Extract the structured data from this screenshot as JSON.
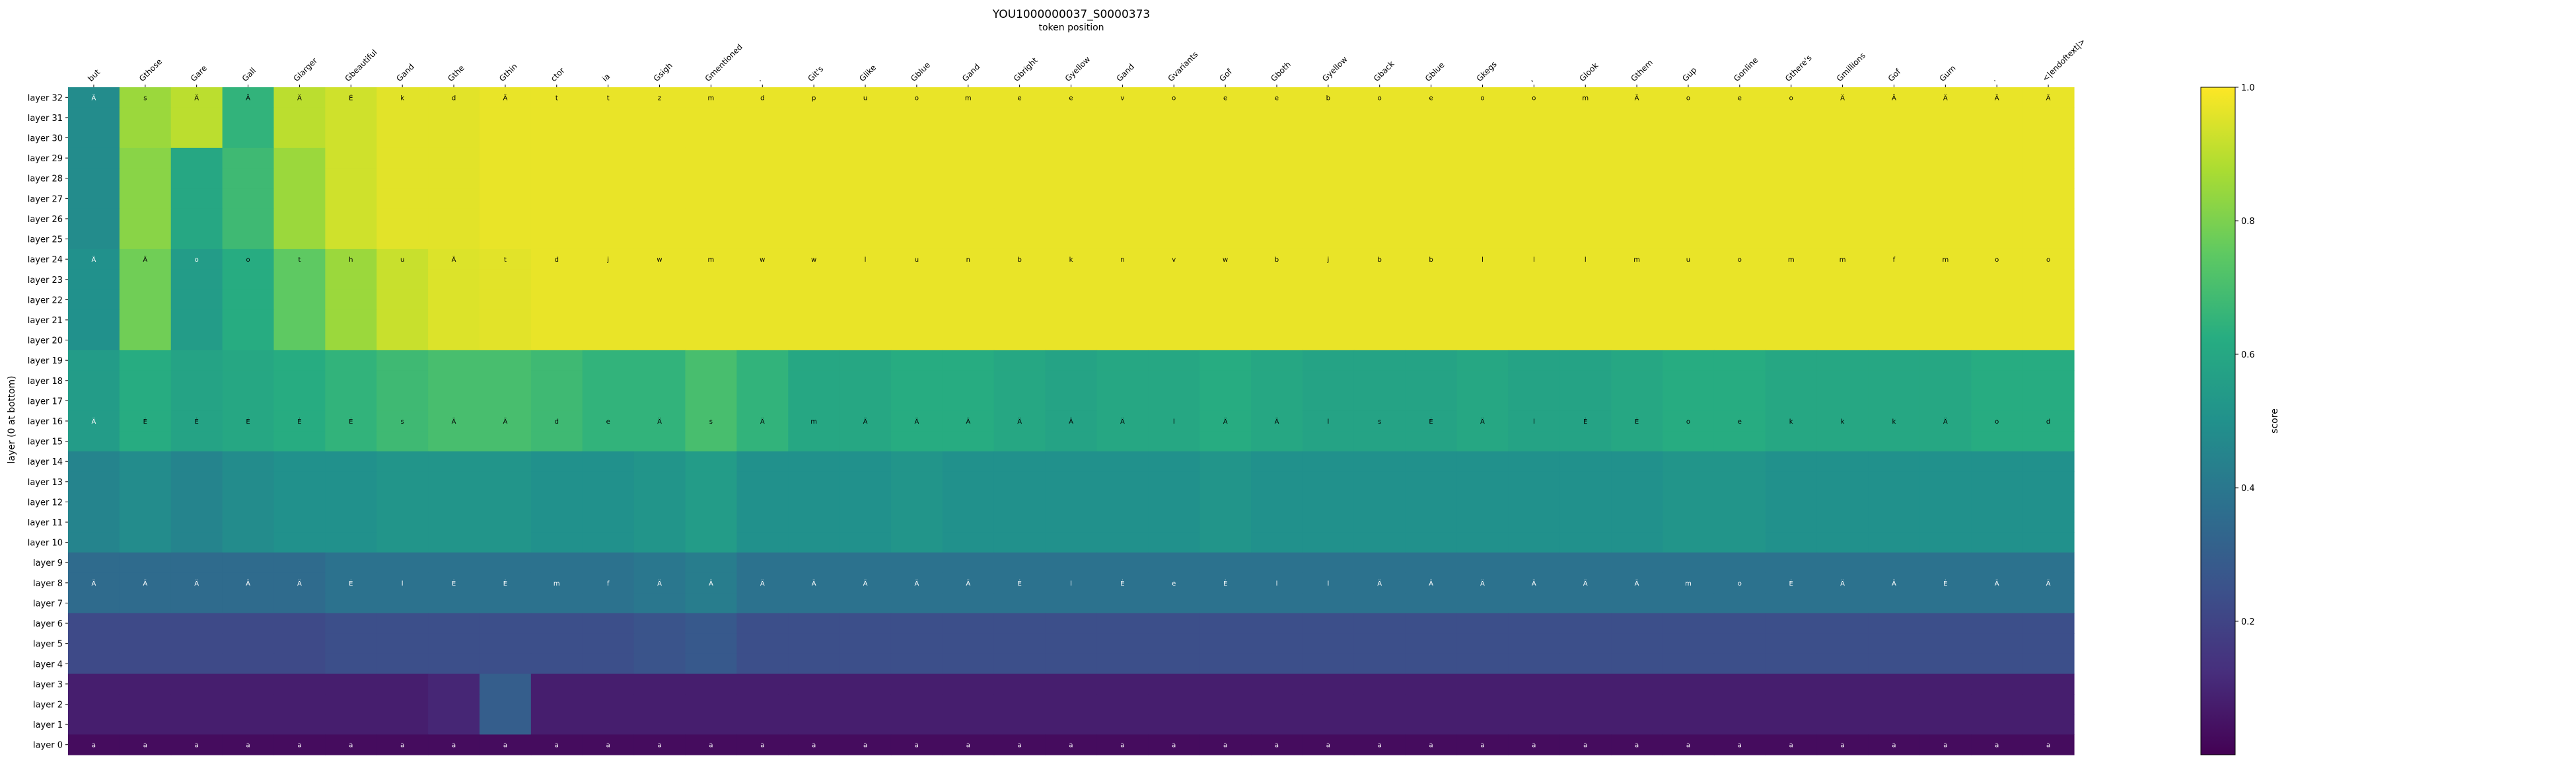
{
  "chart_data": {
    "type": "heatmap",
    "title": "YOU1000000037_S0000373",
    "xlabel": "token position",
    "ylabel": "layer (0 at bottom)",
    "x_tokens": [
      "but",
      "Gthose",
      "Gare",
      "Gall",
      "Glarger",
      "Gbeautiful",
      "Gand",
      "Gthe",
      "Gthin",
      "ctor",
      "ia",
      "Gsigh",
      "Gmentioned",
      ".",
      "Git's",
      "Glike",
      "Gblue",
      "Gand",
      "Gbright",
      "Gyellow",
      "Gand",
      "Gvariants",
      "Gof",
      "Gboth",
      "Gyellow",
      "Gback",
      "Gblue",
      "Gkegs",
      ",",
      "Glook",
      "Gthem",
      "Gup",
      "Gonline",
      "Gthere's",
      "Gmillions",
      "Gof",
      "Gum",
      ".",
      "<|endoftext|>"
    ],
    "y_labels": [
      "layer 32",
      "layer 31",
      "layer 30",
      "layer 29",
      "layer 28",
      "layer 27",
      "layer 26",
      "layer 25",
      "layer 24",
      "layer 23",
      "layer 22",
      "layer 21",
      "layer 20",
      "layer 19",
      "layer 18",
      "layer 17",
      "layer 16",
      "layer 15",
      "layer 14",
      "layer 13",
      "layer 12",
      "layer 11",
      "layer 10",
      "layer 9",
      "layer 8",
      "layer 7",
      "layer 6",
      "layer 5",
      "layer 4",
      "layer 3",
      "layer 2",
      "layer 1",
      "layer 0"
    ],
    "score_bands": [
      {
        "layers": [
          32,
          31,
          30
        ],
        "values": [
          0.48,
          0.85,
          0.9,
          0.65,
          0.9,
          0.93,
          0.96,
          0.96,
          0.97,
          0.97,
          0.97,
          0.97,
          0.97,
          0.97,
          0.97,
          0.97,
          0.97,
          0.97,
          0.97,
          0.97,
          0.97,
          0.97,
          0.97,
          0.97,
          0.97,
          0.97,
          0.97,
          0.97,
          0.97,
          0.97,
          0.97,
          0.97,
          0.97,
          0.97,
          0.97,
          0.97,
          0.97,
          0.97,
          0.97
        ]
      },
      {
        "layers": [
          29,
          28,
          27,
          26,
          25
        ],
        "values": [
          0.48,
          0.82,
          0.6,
          0.68,
          0.85,
          0.93,
          0.96,
          0.96,
          0.97,
          0.97,
          0.97,
          0.97,
          0.97,
          0.97,
          0.97,
          0.97,
          0.97,
          0.97,
          0.97,
          0.97,
          0.97,
          0.97,
          0.97,
          0.97,
          0.97,
          0.97,
          0.97,
          0.97,
          0.97,
          0.97,
          0.97,
          0.97,
          0.97,
          0.97,
          0.97,
          0.97,
          0.97,
          0.97,
          0.97
        ]
      },
      {
        "layers": [
          24,
          23,
          22,
          21,
          20
        ],
        "values": [
          0.5,
          0.78,
          0.55,
          0.62,
          0.75,
          0.85,
          0.92,
          0.95,
          0.96,
          0.97,
          0.97,
          0.97,
          0.97,
          0.97,
          0.97,
          0.97,
          0.97,
          0.97,
          0.97,
          0.97,
          0.97,
          0.97,
          0.97,
          0.97,
          0.97,
          0.97,
          0.97,
          0.97,
          0.97,
          0.97,
          0.97,
          0.97,
          0.97,
          0.97,
          0.97,
          0.97,
          0.97,
          0.97,
          0.97
        ]
      },
      {
        "layers": [
          19,
          18,
          17,
          16,
          15
        ],
        "values": [
          0.55,
          0.62,
          0.58,
          0.6,
          0.62,
          0.65,
          0.68,
          0.7,
          0.7,
          0.68,
          0.65,
          0.65,
          0.7,
          0.65,
          0.6,
          0.6,
          0.62,
          0.62,
          0.6,
          0.58,
          0.6,
          0.6,
          0.62,
          0.6,
          0.58,
          0.58,
          0.58,
          0.6,
          0.58,
          0.58,
          0.6,
          0.62,
          0.62,
          0.6,
          0.6,
          0.6,
          0.6,
          0.62,
          0.62
        ]
      },
      {
        "layers": [
          14,
          13,
          12,
          11,
          10
        ],
        "values": [
          0.45,
          0.48,
          0.45,
          0.48,
          0.5,
          0.5,
          0.52,
          0.52,
          0.52,
          0.5,
          0.5,
          0.52,
          0.55,
          0.5,
          0.5,
          0.5,
          0.52,
          0.5,
          0.5,
          0.5,
          0.5,
          0.5,
          0.52,
          0.5,
          0.5,
          0.5,
          0.5,
          0.5,
          0.5,
          0.5,
          0.5,
          0.52,
          0.52,
          0.5,
          0.5,
          0.5,
          0.5,
          0.5,
          0.5
        ]
      },
      {
        "layers": [
          9,
          8,
          7
        ],
        "values": [
          0.35,
          0.35,
          0.35,
          0.35,
          0.35,
          0.38,
          0.38,
          0.38,
          0.38,
          0.38,
          0.38,
          0.4,
          0.42,
          0.38,
          0.38,
          0.38,
          0.38,
          0.38,
          0.38,
          0.38,
          0.38,
          0.38,
          0.38,
          0.38,
          0.38,
          0.38,
          0.38,
          0.38,
          0.38,
          0.38,
          0.38,
          0.38,
          0.38,
          0.38,
          0.38,
          0.38,
          0.38,
          0.38,
          0.38
        ]
      },
      {
        "layers": [
          6,
          5,
          4
        ],
        "values": [
          0.22,
          0.22,
          0.22,
          0.22,
          0.22,
          0.24,
          0.24,
          0.24,
          0.24,
          0.24,
          0.24,
          0.26,
          0.28,
          0.24,
          0.24,
          0.24,
          0.24,
          0.24,
          0.24,
          0.24,
          0.24,
          0.24,
          0.24,
          0.24,
          0.24,
          0.24,
          0.24,
          0.24,
          0.24,
          0.24,
          0.24,
          0.24,
          0.24,
          0.24,
          0.24,
          0.24,
          0.24,
          0.24,
          0.24
        ]
      },
      {
        "layers": [
          3,
          2,
          1
        ],
        "values": [
          0.08,
          0.08,
          0.08,
          0.08,
          0.08,
          0.08,
          0.08,
          0.1,
          0.3,
          0.08,
          0.08,
          0.08,
          0.08,
          0.08,
          0.08,
          0.08,
          0.08,
          0.08,
          0.08,
          0.08,
          0.08,
          0.08,
          0.08,
          0.08,
          0.08,
          0.08,
          0.08,
          0.08,
          0.08,
          0.08,
          0.08,
          0.08,
          0.08,
          0.08,
          0.08,
          0.08,
          0.08,
          0.08,
          0.08
        ]
      },
      {
        "layers": [
          0
        ],
        "values": [
          0.03,
          0.03,
          0.03,
          0.03,
          0.03,
          0.03,
          0.03,
          0.03,
          0.03,
          0.03,
          0.03,
          0.03,
          0.03,
          0.03,
          0.03,
          0.03,
          0.03,
          0.03,
          0.03,
          0.03,
          0.03,
          0.03,
          0.03,
          0.03,
          0.03,
          0.03,
          0.03,
          0.03,
          0.03,
          0.03,
          0.03,
          0.03,
          0.03,
          0.03,
          0.03,
          0.03,
          0.03,
          0.03,
          0.03
        ]
      }
    ],
    "cell_labels_by_layer": {
      "32": [
        "Ä",
        "s",
        "Ä",
        "Ä",
        "Ä",
        "Ė",
        "k",
        "d",
        "Ä",
        "t",
        "t",
        "z",
        "m",
        "d",
        "p",
        "u",
        "o",
        "m",
        "e",
        "e",
        "v",
        "o",
        "e",
        "e",
        "b",
        "o",
        "e",
        "o",
        "o",
        "m",
        "Ä",
        "o",
        "e",
        "o",
        "Ä",
        "Ä",
        "Ä",
        "Ä",
        "Ä"
      ],
      "24": [
        "Ä",
        "Ä",
        "o",
        "o",
        "t",
        "h",
        "u",
        "Ä",
        "t",
        "d",
        "j",
        "w",
        "m",
        "w",
        "w",
        "l",
        "u",
        "n",
        "b",
        "k",
        "n",
        "v",
        "w",
        "b",
        "j",
        "b",
        "b",
        "l",
        "l",
        "l",
        "m",
        "u",
        "o",
        "m",
        "m",
        "f",
        "m",
        "o",
        "o"
      ],
      "16": [
        "Ä",
        "Ė",
        "Ė",
        "Ė",
        "Ė",
        "Ė",
        "s",
        "Ä",
        "Ä",
        "d",
        "e",
        "Ä",
        "s",
        "Ä",
        "m",
        "Ä",
        "Ä",
        "Ä",
        "Ä",
        "Ä",
        "Ä",
        "l",
        "Ä",
        "Ä",
        "l",
        "s",
        "Ė",
        "Ä",
        "l",
        "Ė",
        "Ė",
        "o",
        "e",
        "k",
        "k",
        "k",
        "Ä",
        "o",
        "d"
      ],
      "8": [
        "Ä",
        "Ä",
        "Ä",
        "Ä",
        "Ä",
        "Ė",
        "l",
        "Ė",
        "Ė",
        "m",
        "f",
        "Ä",
        "Ä",
        "Ä",
        "Ä",
        "Ä",
        "Ä",
        "Ä",
        "Ė",
        "l",
        "Ė",
        "e",
        "Ė",
        "l",
        "l",
        "Ä",
        "Ä",
        "Ä",
        "Ä",
        "Ä",
        "Ä",
        "m",
        "o",
        "Ė",
        "Ä",
        "Ä",
        "Ė",
        "Ä",
        "Ä"
      ],
      "0": [
        "a",
        "a",
        "a",
        "a",
        "a",
        "a",
        "a",
        "a",
        "a",
        "a",
        "a",
        "a",
        "a",
        "a",
        "a",
        "a",
        "a",
        "a",
        "a",
        "a",
        "a",
        "a",
        "a",
        "a",
        "a",
        "a",
        "a",
        "a",
        "a",
        "a",
        "a",
        "a",
        "a",
        "a",
        "a",
        "a",
        "a",
        "a",
        "a"
      ]
    },
    "colorbar": {
      "label": "score",
      "min": 0.0,
      "max": 1.0,
      "ticks": [
        "0.2",
        "0.4",
        "0.6",
        "0.8",
        "1.0"
      ],
      "colormap": "viridis"
    }
  }
}
